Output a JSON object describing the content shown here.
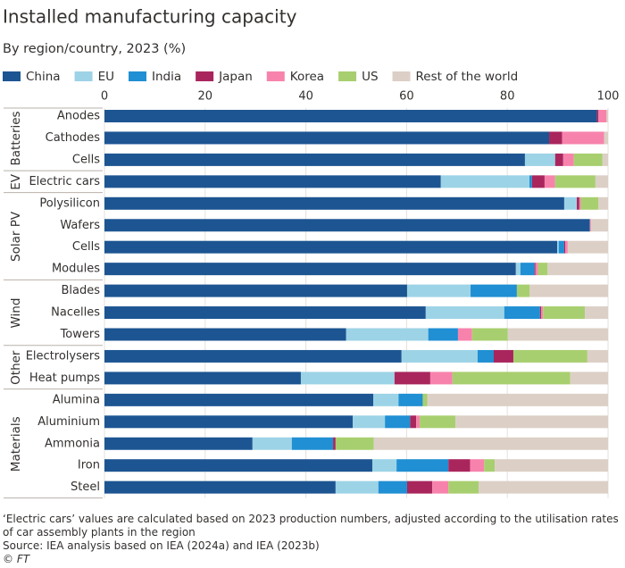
{
  "chart_data": {
    "type": "bar",
    "orientation": "horizontal",
    "stacked": true,
    "title": "Installed manufacturing capacity",
    "subtitle": "By region/country, 2023 (%)",
    "groups": [
      {
        "name": "Batteries",
        "categories": [
          "Anodes",
          "Cathodes",
          "Cells"
        ]
      },
      {
        "name": "EV",
        "categories": [
          "Electric cars"
        ]
      },
      {
        "name": "Solar PV",
        "categories": [
          "Polysilicon",
          "Wafers",
          "Cells",
          "Modules"
        ]
      },
      {
        "name": "Wind",
        "categories": [
          "Blades",
          "Nacelles",
          "Towers"
        ]
      },
      {
        "name": "Other",
        "categories": [
          "Electrolysers",
          "Heat pumps"
        ]
      },
      {
        "name": "Materials",
        "categories": [
          "Alumina",
          "Aluminium",
          "Ammonia",
          "Iron",
          "Steel"
        ]
      }
    ],
    "series": [
      {
        "name": "China",
        "color": "#1d5592",
        "values": [
          97.8,
          88.3,
          83.5,
          66.8,
          91.3,
          96.4,
          89.9,
          81.7,
          60.1,
          63.8,
          48.0,
          59.0,
          39.0,
          53.4,
          49.3,
          29.4,
          53.2,
          45.9
        ]
      },
      {
        "name": "EU",
        "color": "#9dd3e6",
        "values": [
          0,
          0,
          6.0,
          17.6,
          2.5,
          0,
          0.3,
          0.9,
          12.6,
          15.6,
          16.3,
          15.1,
          18.6,
          5.0,
          6.4,
          7.8,
          4.8,
          8.5
        ]
      },
      {
        "name": "India",
        "color": "#208fd3",
        "values": [
          0,
          0,
          0,
          0.5,
          0,
          0,
          1.1,
          2.8,
          9.2,
          7.1,
          5.9,
          3.2,
          0,
          4.8,
          5.0,
          8.2,
          10.3,
          5.7
        ]
      },
      {
        "name": "Japan",
        "color": "#a9265d",
        "values": [
          0.3,
          2.6,
          1.6,
          2.5,
          0.5,
          0,
          0.2,
          0.2,
          0,
          0.2,
          0,
          3.9,
          7.1,
          0,
          1.2,
          0.5,
          4.3,
          5.0
        ]
      },
      {
        "name": "Korea",
        "color": "#f783ac",
        "values": [
          1.6,
          8.3,
          2.1,
          2.1,
          0.3,
          0.2,
          0.5,
          0.5,
          0,
          0.4,
          2.8,
          0,
          4.4,
          0,
          0.7,
          0,
          2.8,
          3.2
        ]
      },
      {
        "name": "US",
        "color": "#a8cf6f",
        "values": [
          0,
          0,
          5.7,
          8.0,
          3.5,
          0,
          0,
          1.9,
          2.5,
          8.3,
          7.1,
          14.7,
          23.4,
          0.9,
          7.1,
          7.6,
          2.1,
          6.0
        ]
      },
      {
        "name": "Rest of the world",
        "color": "#dccfc6",
        "values": [
          0.3,
          0.8,
          1.1,
          2.5,
          1.9,
          3.4,
          8.0,
          12.0,
          15.6,
          4.6,
          19.9,
          4.1,
          7.5,
          35.9,
          30.3,
          46.5,
          22.5,
          25.7
        ]
      }
    ],
    "xlim": [
      0,
      100
    ],
    "xticks": [
      0,
      20,
      40,
      60,
      80,
      100
    ],
    "grid": true
  },
  "notes": {
    "footnote": "‘Electric cars’ values are calculated based on 2023 production numbers, adjusted according to the utilisation rates of car assembly plants in the region",
    "source": "Source: IEA analysis based on IEA (2024a) and IEA (2023b)",
    "credit": "© FT"
  }
}
